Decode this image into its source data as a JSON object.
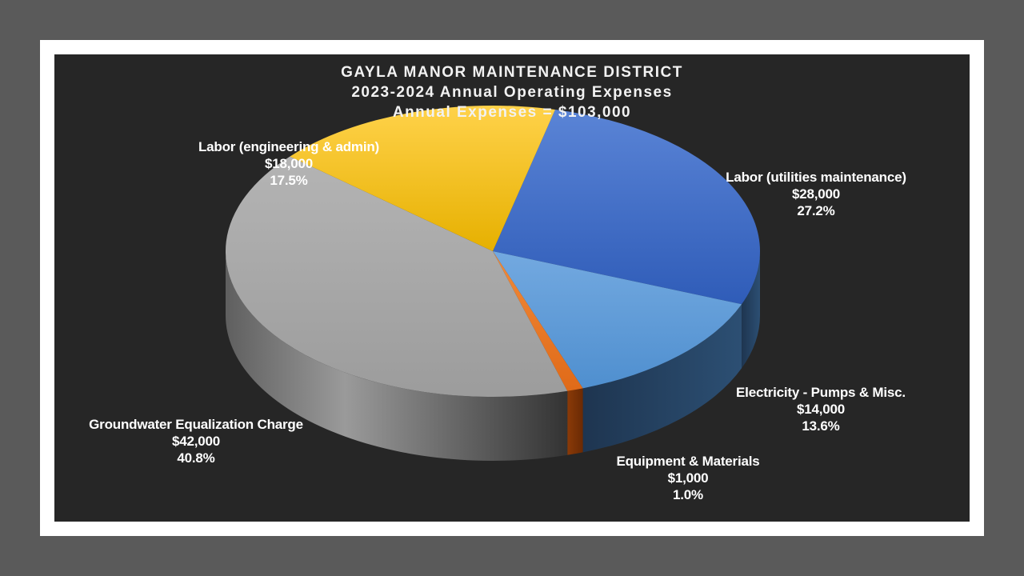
{
  "chart_data": {
    "type": "pie",
    "title": "GAYLA MANOR MAINTENANCE DISTRICT",
    "subtitle": "2023-2024 Annual Operating Expenses",
    "subtitle2": "Annual Expenses = $103,000",
    "total": 103000,
    "slices": [
      {
        "label": "Labor (utilities maintenance)",
        "value": 28000,
        "value_text": "$28,000",
        "percent_text": "27.2%",
        "color": "#3a67c4"
      },
      {
        "label": "Electricity - Pumps & Misc.",
        "value": 14000,
        "value_text": "$14,000",
        "percent_text": "13.6%",
        "color": "#5b9bd5"
      },
      {
        "label": "Equipment & Materials",
        "value": 1000,
        "value_text": "$1,000",
        "percent_text": "1.0%",
        "color": "#ed7d31"
      },
      {
        "label": "Groundwater Equalization Charge",
        "value": 42000,
        "value_text": "$42,000",
        "percent_text": "40.8%",
        "color": "#a5a5a5"
      },
      {
        "label": "Labor (engineering & admin)",
        "value": 18000,
        "value_text": "$18,000",
        "percent_text": "17.5%",
        "color": "#ffc000"
      }
    ],
    "legend": "none",
    "style": "3d-pie"
  }
}
